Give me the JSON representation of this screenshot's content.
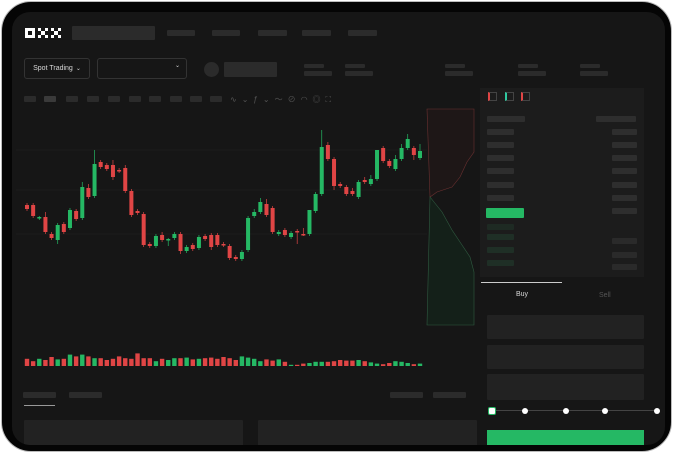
{
  "brand": {
    "logo_text": "OKX"
  },
  "toolbar": {
    "market_select": "Spot Trading",
    "pair_select": "",
    "icons": [
      "indicator-icon",
      "line-tool-icon",
      "draw-icon",
      "pen-icon",
      "screenshot-icon",
      "settings-icon",
      "fullscreen-icon"
    ]
  },
  "orderbook": {
    "view_icons": [
      "both-sides-icon",
      "bids-icon",
      "asks-icon"
    ]
  },
  "order_form": {
    "tabs": [
      {
        "label": "Buy",
        "active": true
      },
      {
        "label": "Sell",
        "active": false
      }
    ],
    "leverage_slider": {
      "value": 0,
      "steps": 5
    },
    "submit_color": "#25b864"
  },
  "colors": {
    "up": "#25b864",
    "down": "#e04545",
    "background": "#161616"
  },
  "chart_data": {
    "type": "candlestick",
    "title": "",
    "xlabel": "",
    "ylabel": "",
    "candle_fields": [
      "open",
      "high",
      "low",
      "close"
    ],
    "candles": [
      [
        97,
        99,
        91,
        93
      ],
      [
        97,
        99,
        84,
        86
      ],
      [
        84,
        86,
        82,
        85
      ],
      [
        85,
        90,
        68,
        70
      ],
      [
        68,
        70,
        62,
        64
      ],
      [
        62,
        79,
        58,
        77
      ],
      [
        78,
        80,
        68,
        70
      ],
      [
        74,
        94,
        72,
        92
      ],
      [
        91,
        93,
        81,
        83
      ],
      [
        84,
        120,
        82,
        115
      ],
      [
        114,
        118,
        103,
        105
      ],
      [
        106,
        152,
        104,
        138
      ],
      [
        140,
        142,
        133,
        135
      ],
      [
        137,
        139,
        131,
        133
      ],
      [
        137,
        142,
        122,
        125
      ],
      [
        132,
        134,
        129,
        131
      ],
      [
        134,
        137,
        109,
        111
      ],
      [
        111,
        113,
        85,
        87
      ],
      [
        91,
        93,
        87,
        89
      ],
      [
        88,
        90,
        55,
        57
      ],
      [
        58,
        60,
        54,
        56
      ],
      [
        56,
        68,
        54,
        66
      ],
      [
        67,
        70,
        60,
        62
      ],
      [
        62,
        64,
        56,
        63
      ],
      [
        64,
        70,
        62,
        68
      ],
      [
        68,
        70,
        48,
        51
      ],
      [
        51,
        57,
        49,
        55
      ],
      [
        57,
        59,
        51,
        53
      ],
      [
        54,
        67,
        52,
        65
      ],
      [
        66,
        68,
        61,
        63
      ],
      [
        67,
        69,
        52,
        55
      ],
      [
        67,
        69,
        55,
        57
      ],
      [
        58,
        60,
        55,
        57
      ],
      [
        56,
        58,
        42,
        44
      ],
      [
        45,
        47,
        41,
        43
      ],
      [
        43,
        52,
        41,
        50
      ],
      [
        52,
        86,
        50,
        84
      ],
      [
        86,
        93,
        84,
        90
      ],
      [
        90,
        104,
        88,
        100
      ],
      [
        98,
        103,
        85,
        87
      ],
      [
        94,
        96,
        68,
        70
      ],
      [
        68,
        72,
        66,
        70
      ],
      [
        72,
        74,
        65,
        67
      ],
      [
        65,
        71,
        63,
        69
      ],
      [
        71,
        73,
        58,
        70
      ],
      [
        68,
        74,
        66,
        67
      ],
      [
        68,
        92,
        66,
        92
      ],
      [
        91,
        110,
        89,
        108
      ],
      [
        108,
        172,
        106,
        155
      ],
      [
        157,
        160,
        141,
        143
      ],
      [
        143,
        145,
        112,
        116
      ],
      [
        118,
        120,
        114,
        116
      ],
      [
        115,
        117,
        106,
        108
      ],
      [
        111,
        114,
        106,
        108
      ],
      [
        105,
        122,
        103,
        120
      ],
      [
        122,
        125,
        118,
        120
      ],
      [
        118,
        127,
        116,
        123
      ],
      [
        123,
        152,
        121,
        152
      ],
      [
        154,
        156,
        139,
        141
      ],
      [
        141,
        143,
        134,
        136
      ],
      [
        133,
        147,
        131,
        143
      ],
      [
        143,
        158,
        141,
        154
      ],
      [
        154,
        168,
        152,
        163
      ],
      [
        154,
        156,
        142,
        147
      ],
      [
        144,
        158,
        142,
        151
      ]
    ],
    "volumes": [
      12,
      8,
      12,
      10,
      15,
      11,
      12,
      19,
      16,
      19,
      16,
      13,
      13,
      10,
      12,
      16,
      13,
      12,
      21,
      13,
      13,
      8,
      12,
      10,
      13,
      13,
      14,
      11,
      12,
      13,
      14,
      12,
      15,
      13,
      10,
      16,
      14,
      12,
      8,
      11,
      9,
      11,
      7,
      2,
      2,
      4,
      5,
      7,
      7,
      7,
      8,
      10,
      9,
      9,
      10,
      8,
      6,
      4,
      3,
      5,
      8,
      7,
      5,
      3,
      4
    ],
    "grid": true
  }
}
